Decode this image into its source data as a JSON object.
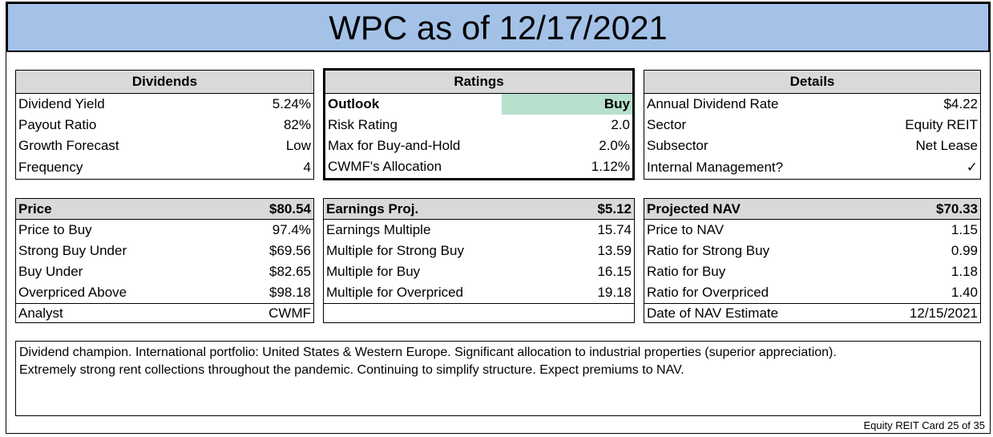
{
  "title": "WPC as of 12/17/2021",
  "dividends": {
    "header": "Dividends",
    "rows": [
      {
        "label": "Dividend Yield",
        "value": "5.24%"
      },
      {
        "label": "Payout Ratio",
        "value": "82%"
      },
      {
        "label": "Growth Forecast",
        "value": "Low"
      },
      {
        "label": "Frequency",
        "value": "4"
      }
    ]
  },
  "ratings": {
    "header": "Ratings",
    "outlook_label": "Outlook",
    "outlook_value": "Buy",
    "outlook_color": "#b7e1cd",
    "rows": [
      {
        "label": "Risk Rating",
        "value": "2.0"
      },
      {
        "label": "Max for Buy-and-Hold",
        "value": "2.0%"
      },
      {
        "label": "CWMF's Allocation",
        "value": "1.12%"
      }
    ]
  },
  "details": {
    "header": "Details",
    "rows": [
      {
        "label": "Annual Dividend Rate",
        "value": "$4.22"
      },
      {
        "label": "Sector",
        "value": "Equity REIT"
      },
      {
        "label": "Subsector",
        "value": "Net Lease"
      },
      {
        "label": "Internal Management?",
        "value": "✓"
      }
    ]
  },
  "price": {
    "label": "Price",
    "value": "$80.54",
    "rows": [
      {
        "label": "Price to Buy",
        "value": "97.4%"
      },
      {
        "label": "Strong Buy Under",
        "value": "$69.56"
      },
      {
        "label": "Buy Under",
        "value": "$82.65"
      },
      {
        "label": "Overpriced Above",
        "value": "$98.18"
      }
    ],
    "analyst_label": "Analyst",
    "analyst_value": "CWMF"
  },
  "earnings": {
    "label": "Earnings Proj.",
    "value": "$5.12",
    "rows": [
      {
        "label": "Earnings Multiple",
        "value": "15.74"
      },
      {
        "label": "Multiple for Strong Buy",
        "value": "13.59"
      },
      {
        "label": "Multiple for Buy",
        "value": "16.15"
      },
      {
        "label": "Multiple for Overpriced",
        "value": "19.18"
      }
    ]
  },
  "nav": {
    "label": "Projected NAV",
    "value": "$70.33",
    "rows": [
      {
        "label": "Price to NAV",
        "value": "1.15"
      },
      {
        "label": "Ratio for Strong Buy",
        "value": "0.99"
      },
      {
        "label": "Ratio for Buy",
        "value": "1.18"
      },
      {
        "label": "Ratio for Overpriced",
        "value": "1.40"
      }
    ],
    "date_label": "Date of NAV Estimate",
    "date_value": "12/15/2021"
  },
  "notes": {
    "line1": "Dividend champion. International portfolio: United States & Western Europe. Significant allocation to industrial properties (superior appreciation).",
    "line2": "Extremely strong rent collections throughout the pandemic. Continuing to simplify structure. Expect premiums to NAV."
  },
  "footer": "Equity REIT Card 25 of 35"
}
